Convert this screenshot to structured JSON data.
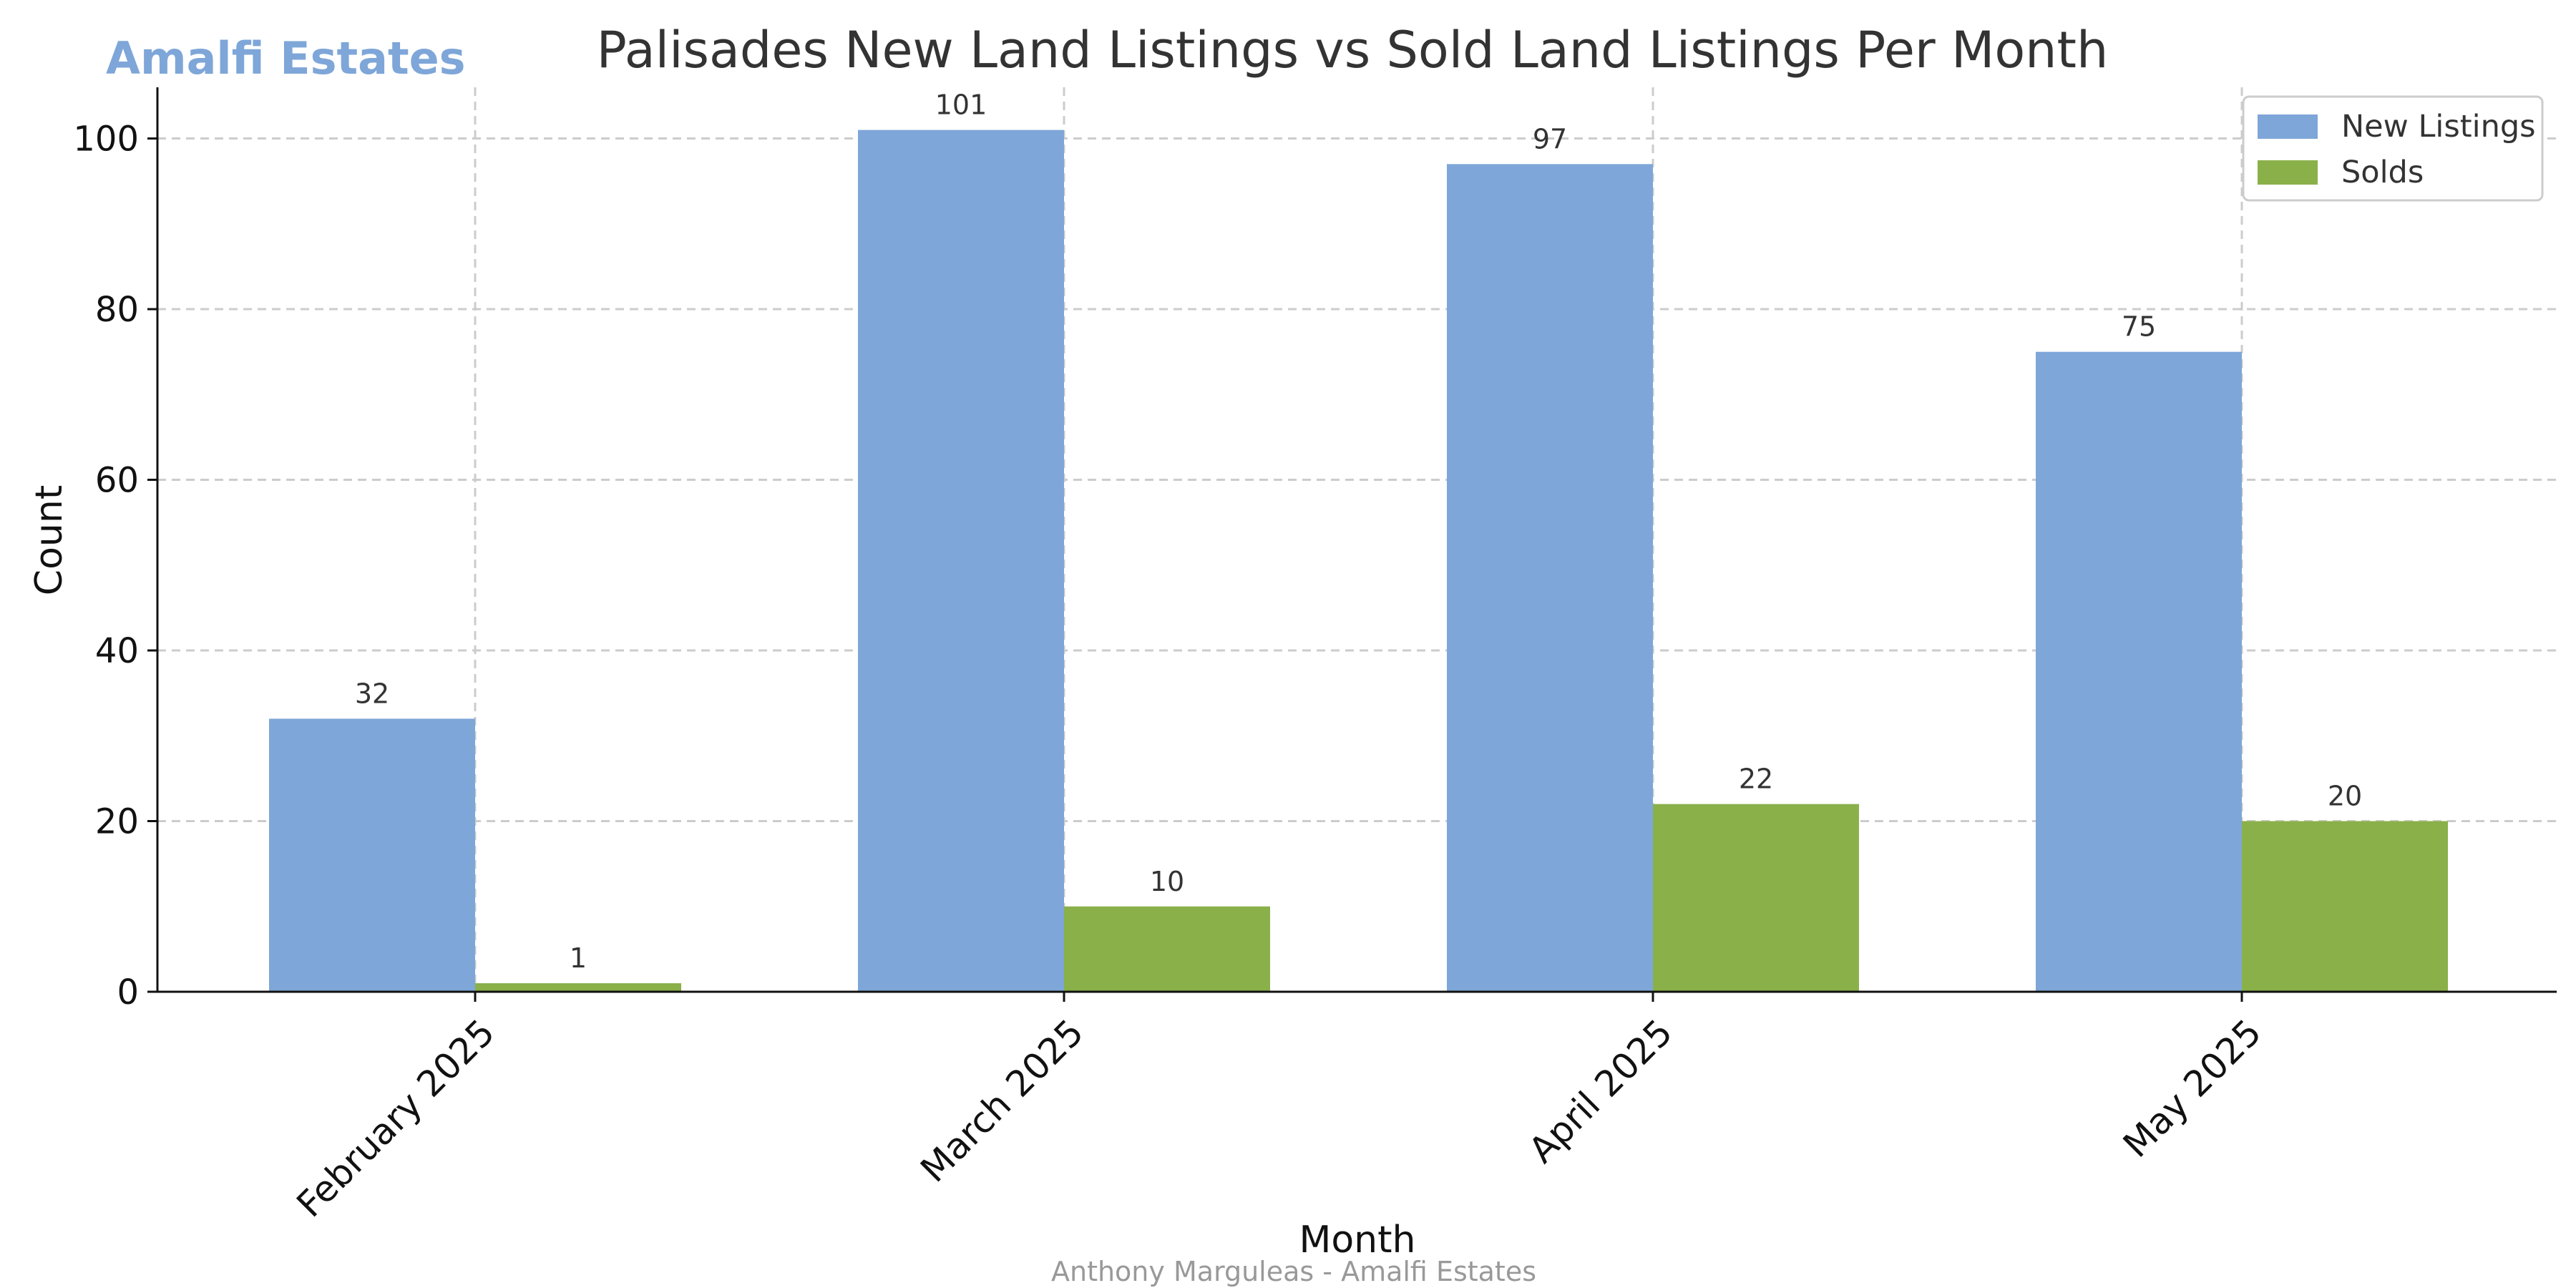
{
  "brand": {
    "name": "Amalfi Estates",
    "color": "#7ea6d8"
  },
  "footer": {
    "credit": "Anthony Marguleas - Amalfi Estates"
  },
  "chart_data": {
    "type": "bar",
    "title": "Palisades New Land Listings vs Sold Land Listings Per Month",
    "xlabel": "Month",
    "ylabel": "Count",
    "categories": [
      "February 2025",
      "March 2025",
      "April 2025",
      "May 2025"
    ],
    "series": [
      {
        "name": "New Listings",
        "values": [
          32,
          101,
          97,
          75
        ],
        "color": "#7ea6d8"
      },
      {
        "name": "Solds",
        "values": [
          1,
          10,
          22,
          20
        ],
        "color": "#8ab04a"
      }
    ],
    "ylim": [
      0,
      106
    ],
    "yticks": [
      0,
      20,
      40,
      60,
      80,
      100
    ],
    "grid": true,
    "legend_position": "top-right",
    "data_labels": true
  }
}
